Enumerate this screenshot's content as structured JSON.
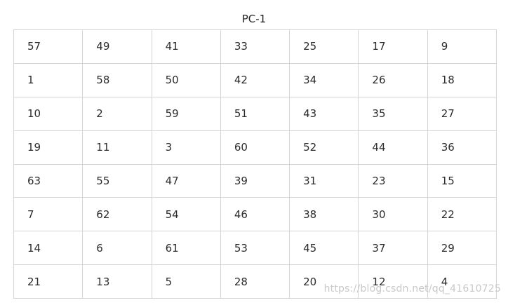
{
  "caption": "PC-1",
  "table": {
    "rows": [
      [
        "57",
        "49",
        "41",
        "33",
        "25",
        "17",
        "9"
      ],
      [
        "1",
        "58",
        "50",
        "42",
        "34",
        "26",
        "18"
      ],
      [
        "10",
        "2",
        "59",
        "51",
        "43",
        "35",
        "27"
      ],
      [
        "19",
        "11",
        "3",
        "60",
        "52",
        "44",
        "36"
      ],
      [
        "63",
        "55",
        "47",
        "39",
        "31",
        "23",
        "15"
      ],
      [
        "7",
        "62",
        "54",
        "46",
        "38",
        "30",
        "22"
      ],
      [
        "14",
        "6",
        "61",
        "53",
        "45",
        "37",
        "29"
      ],
      [
        "21",
        "13",
        "5",
        "28",
        "20",
        "12",
        "4"
      ]
    ]
  },
  "watermark": "https://blog.csdn.net/qq_41610725"
}
